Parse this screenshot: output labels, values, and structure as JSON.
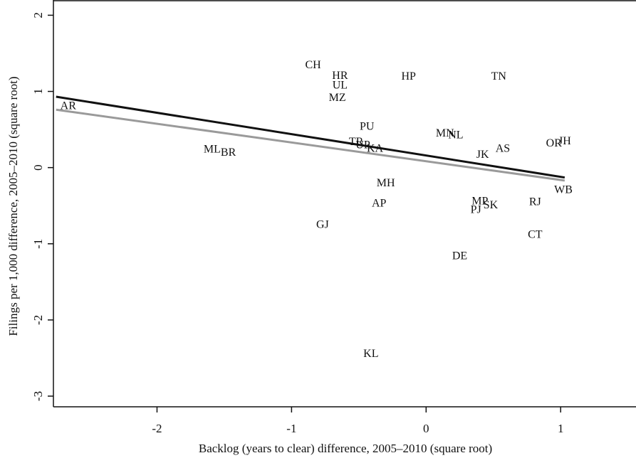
{
  "chart_data": {
    "type": "scatter",
    "xlabel": "Backlog (years to clear) difference, 2005–2010 (square root)",
    "ylabel": "Filings per 1,000 difference, 2005–2010 (square root)",
    "labels": [
      "AR",
      "CH",
      "HR",
      "UL",
      "MZ",
      "HP",
      "TN",
      "PU",
      "MN",
      "NL",
      "TR",
      "UP",
      "KA",
      "ML",
      "BR",
      "JK",
      "AS",
      "OR",
      "JH",
      "MH",
      "WB",
      "AP",
      "MP",
      "PJ",
      "SK",
      "RJ",
      "GJ",
      "CT",
      "DE",
      "KL"
    ],
    "x": [
      -2.66,
      -0.84,
      -0.64,
      -0.64,
      -0.66,
      -0.13,
      0.54,
      -0.44,
      0.14,
      0.22,
      -0.52,
      -0.47,
      -0.38,
      -1.59,
      -1.47,
      0.42,
      0.57,
      0.95,
      1.03,
      -0.3,
      1.02,
      -0.35,
      0.4,
      0.37,
      0.48,
      0.81,
      -0.77,
      0.81,
      0.25,
      -0.41
    ],
    "y": [
      0.8,
      1.34,
      1.2,
      1.07,
      0.91,
      1.19,
      1.19,
      0.53,
      0.44,
      0.42,
      0.33,
      0.29,
      0.24,
      0.23,
      0.19,
      0.16,
      0.24,
      0.31,
      0.34,
      -0.21,
      -0.3,
      -0.48,
      -0.45,
      -0.56,
      -0.5,
      -0.46,
      -0.76,
      -0.89,
      -1.17,
      -2.45
    ],
    "lines": [
      {
        "color": "#111111",
        "x": [
          -2.75,
          1.03
        ],
        "y": [
          0.93,
          -0.13
        ]
      },
      {
        "color": "#9a9a9a",
        "x": [
          -2.75,
          1.03
        ],
        "y": [
          0.76,
          -0.17
        ]
      }
    ],
    "xlim": [
      -2.77,
      1.56
    ],
    "ylim": [
      -3.14,
      2.2
    ],
    "xticks": [
      -2,
      -1,
      0,
      1
    ],
    "yticks": [
      -3,
      -2,
      -1,
      0,
      1,
      2
    ]
  }
}
